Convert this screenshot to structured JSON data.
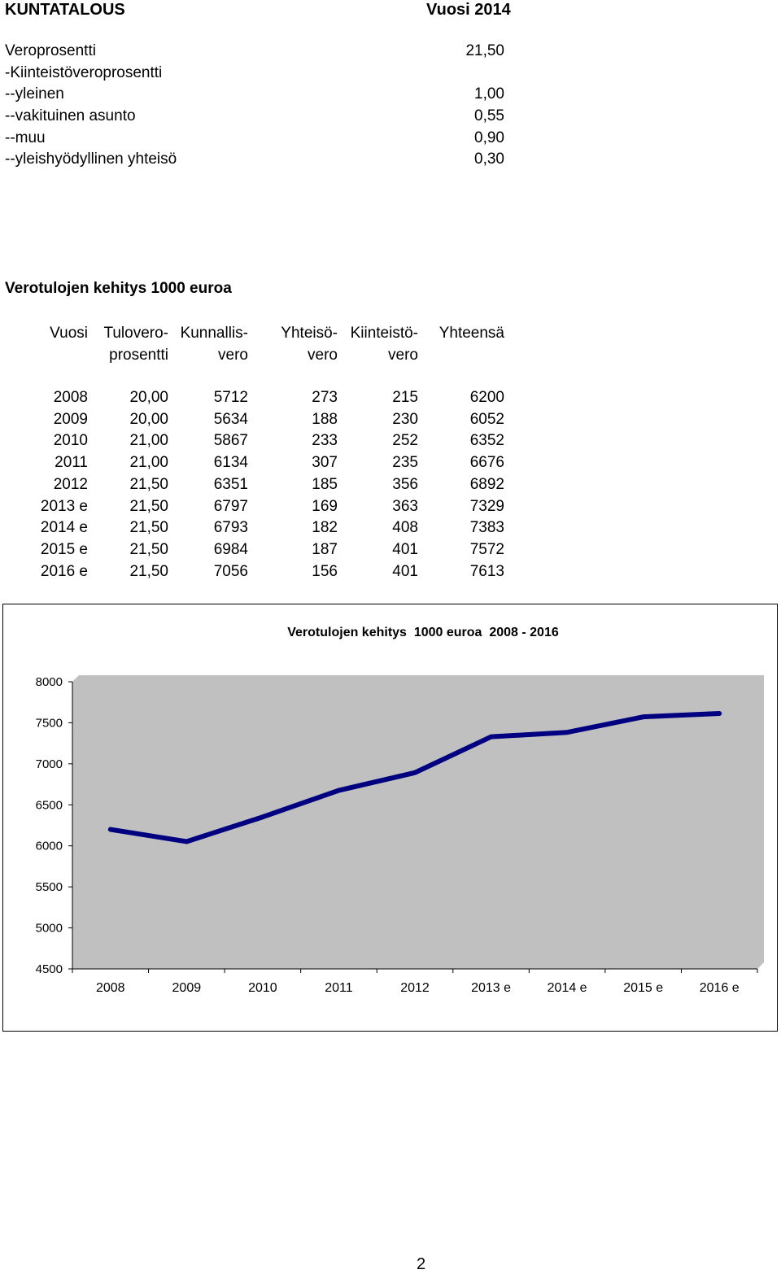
{
  "header": {
    "title": "KUNTATALOUS",
    "year_label": "Vuosi 2014"
  },
  "tax_rates": [
    {
      "label": "Veroprosentti",
      "value": "21,50"
    },
    {
      "label": "-Kiinteistöveroprosentti",
      "value": ""
    },
    {
      "label": "--yleinen",
      "value": "1,00"
    },
    {
      "label": "--vakituinen asunto",
      "value": "0,55"
    },
    {
      "label": "--muu",
      "value": "0,90"
    },
    {
      "label": "--yleishyödyllinen yhteisö",
      "value": "0,30"
    }
  ],
  "revenue_table": {
    "title": "Verotulojen kehitys 1000 euroa",
    "headers": [
      {
        "line1": "Vuosi",
        "line2": ""
      },
      {
        "line1": "Tulovero-",
        "line2": "prosentti"
      },
      {
        "line1": "Kunnallis-",
        "line2": "vero"
      },
      {
        "line1": "Yhteisö-",
        "line2": "vero"
      },
      {
        "line1": "Kiinteistö-",
        "line2": "vero"
      },
      {
        "line1": "Yhteensä",
        "line2": ""
      }
    ],
    "rows": [
      [
        "2008",
        "20,00",
        "5712",
        "273",
        "215",
        "6200"
      ],
      [
        "2009",
        "20,00",
        "5634",
        "188",
        "230",
        "6052"
      ],
      [
        "2010",
        "21,00",
        "5867",
        "233",
        "252",
        "6352"
      ],
      [
        "2011",
        "21,00",
        "6134",
        "307",
        "235",
        "6676"
      ],
      [
        "2012",
        "21,50",
        "6351",
        "185",
        "356",
        "6892"
      ],
      [
        "2013 e",
        "21,50",
        "6797",
        "169",
        "363",
        "7329"
      ],
      [
        "2014 e",
        "21,50",
        "6793",
        "182",
        "408",
        "7383"
      ],
      [
        "2015 e",
        "21,50",
        "6984",
        "187",
        "401",
        "7572"
      ],
      [
        "2016 e",
        "21,50",
        "7056",
        "156",
        "401",
        "7613"
      ]
    ]
  },
  "chart_data": {
    "type": "line",
    "title": "Verotulojen kehitys  1000 euroa  2008 - 2016",
    "categories": [
      "2008",
      "2009",
      "2010",
      "2011",
      "2012",
      "2013 e",
      "2014 e",
      "2015 e",
      "2016 e"
    ],
    "series": [
      {
        "values": [
          6200,
          6052,
          6352,
          6676,
          6892,
          7329,
          7383,
          7572,
          7613
        ]
      }
    ],
    "ylim": [
      4500,
      8000
    ],
    "yticks": [
      "8000",
      "7500",
      "7000",
      "6500",
      "6000",
      "5500",
      "5000",
      "4500"
    ],
    "grid": false,
    "legend": "none",
    "colors": {
      "line": "#000080",
      "plot_bg": "#c0c0c0"
    }
  },
  "footer": {
    "page_number": "2"
  }
}
